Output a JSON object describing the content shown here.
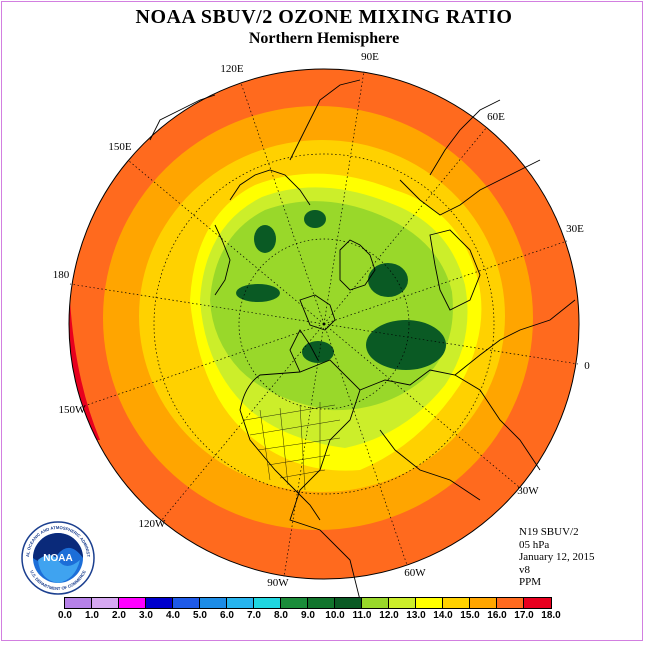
{
  "header": {
    "title": "NOAA SBUV/2 OZONE MIXING RATIO",
    "subtitle": "Northern Hemisphere"
  },
  "map": {
    "projection": "north polar stereographic",
    "longitude_labels": [
      "90E",
      "60E",
      "30E",
      "0",
      "30W",
      "60W",
      "90W",
      "120W",
      "150W",
      "180",
      "150E",
      "120E"
    ],
    "graticule": "dotted"
  },
  "info": {
    "instrument": "N19 SBUV/2",
    "level": "05 hPa",
    "date": "January 12, 2015",
    "version": "v8",
    "units": "PPM"
  },
  "colorbar": {
    "ticks": [
      "0.0",
      "1.0",
      "2.0",
      "3.0",
      "4.0",
      "5.0",
      "6.0",
      "7.0",
      "8.0",
      "9.0",
      "10.0",
      "11.0",
      "12.0",
      "13.0",
      "14.0",
      "15.0",
      "16.0",
      "17.0",
      "18.0"
    ],
    "colors": [
      "#b681e8",
      "#d6a8f2",
      "#ff00ff",
      "#0000cd",
      "#1e5ae8",
      "#1c8ce6",
      "#26b4ee",
      "#1fd6e0",
      "#1a8c3a",
      "#11742c",
      "#0a5a24",
      "#99d82a",
      "#ccee2a",
      "#ffff00",
      "#ffd100",
      "#ffa500",
      "#ff6a1e",
      "#e8001e",
      "#7a4a2a"
    ]
  },
  "logo": {
    "text": "NOAA",
    "ring_text": "NATIONAL OCEANIC AND ATMOSPHERIC ADMINISTRATION",
    "bottom_text": "U.S. DEPARTMENT OF COMMERCE"
  }
}
